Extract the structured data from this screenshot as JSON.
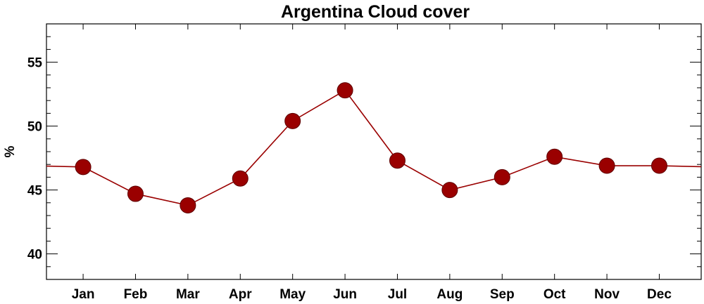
{
  "chart_data": {
    "type": "line",
    "title": "Argentina Cloud cover",
    "xlabel": "",
    "ylabel": "%",
    "categories": [
      "Jan",
      "Feb",
      "Mar",
      "Apr",
      "May",
      "Jun",
      "Jul",
      "Aug",
      "Sep",
      "Oct",
      "Nov",
      "Dec"
    ],
    "values": [
      46.8,
      44.7,
      43.8,
      45.9,
      50.4,
      52.8,
      47.3,
      45.0,
      46.0,
      47.6,
      46.9,
      46.9
    ],
    "ylim": [
      38,
      58
    ],
    "yticks": [
      40,
      45,
      50,
      55
    ],
    "grid": false,
    "line_color": "#9a0000",
    "marker_color": "#9a0000"
  }
}
